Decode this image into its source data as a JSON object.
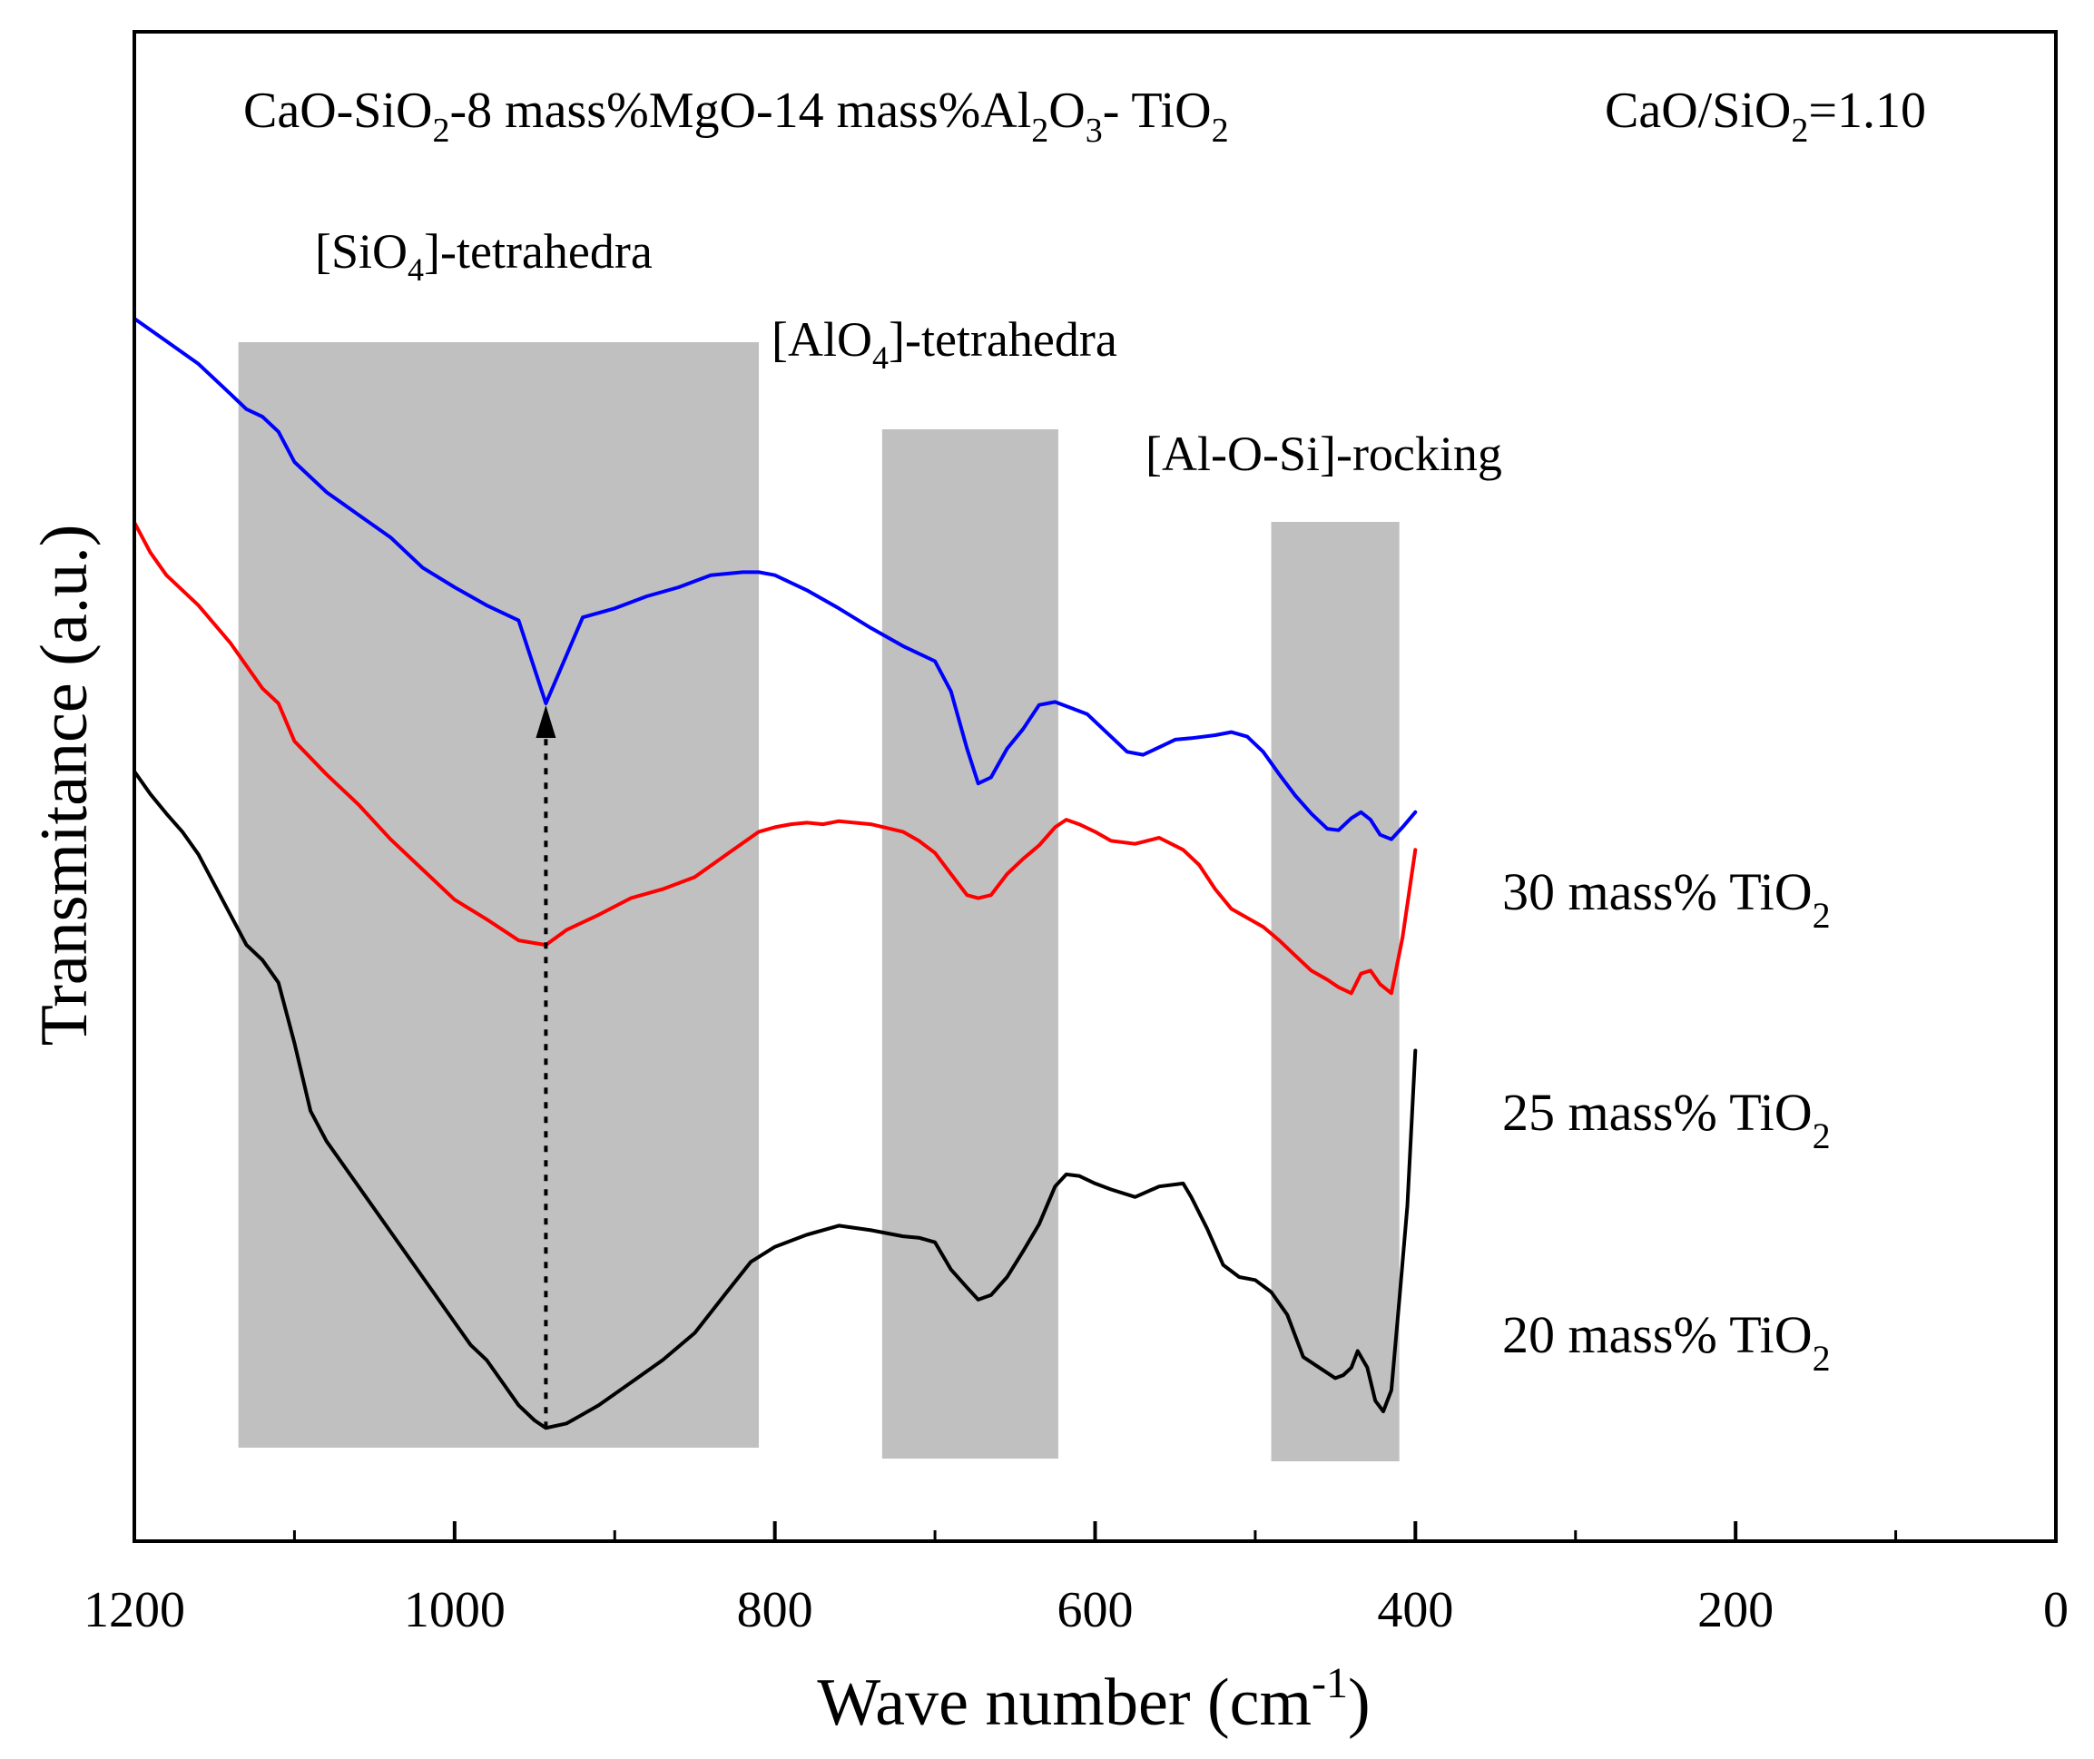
{
  "chart_data": {
    "type": "line",
    "title_parts": {
      "t1": "CaO-SiO",
      "s1": "2",
      "t2": "-8 mass%MgO-14 mass%Al",
      "s2": "2",
      "t3": "O",
      "s3": "3",
      "t4": "- TiO",
      "s4": "2"
    },
    "ratio_parts": {
      "t1": "CaO/SiO",
      "s1": "2",
      "t2": "=1.10"
    },
    "xlabel_main": "Wave number (cm",
    "xlabel_sup": "-1",
    "xlabel_close": ")",
    "ylabel": "Transmitance (a.u.)",
    "xlim": [
      1200,
      0
    ],
    "ylim": [
      0,
      100
    ],
    "x_ticks": [
      "1200",
      "1000",
      "800",
      "600",
      "400",
      "200",
      "0"
    ],
    "grid": false,
    "bands": [
      {
        "label": "[SiO4]-tetrahedra",
        "label_main": "[SiO",
        "label_sub": "4",
        "label_end": "]-tetrahedra",
        "x_from": 1135,
        "x_to": 810,
        "color": "#c0c0c0"
      },
      {
        "label": "[AlO4]-tetrahedra",
        "label_main": "[AlO",
        "label_sub": "4",
        "label_end": "]-tetrahedra",
        "x_from": 733,
        "x_to": 623,
        "color": "#c0c0c0"
      },
      {
        "label": "[Al-O-Si]-rocking",
        "label_main": "[Al-O-Si]-rocking",
        "label_sub": "",
        "label_end": "",
        "x_from": 490,
        "x_to": 410,
        "color": "#c0c0c0"
      }
    ],
    "arrow": {
      "x": 943,
      "y_from": 7.5,
      "y_to": 55.5,
      "style": "dotted"
    },
    "series": [
      {
        "name": "30 mass% TiO2",
        "label_main": "30 mass% TiO",
        "label_sub": "2",
        "color": "#0000ff",
        "x": [
          1200,
          1180,
          1160,
          1140,
          1130,
          1120,
          1110,
          1100,
          1080,
          1060,
          1040,
          1020,
          1000,
          980,
          960,
          943,
          920,
          900,
          880,
          860,
          840,
          820,
          810,
          800,
          780,
          760,
          740,
          720,
          700,
          690,
          680,
          673,
          665,
          655,
          645,
          635,
          625,
          615,
          605,
          595,
          580,
          570,
          560,
          550,
          540,
          525,
          515,
          505,
          495,
          485,
          475,
          465,
          455,
          448,
          440,
          434,
          428,
          422,
          415,
          408,
          400
        ],
        "y": [
          81,
          79.5,
          78,
          76,
          75,
          74.5,
          73.5,
          71.5,
          69.5,
          68,
          66.5,
          64.5,
          63.2,
          62,
          61,
          55.5,
          61.2,
          61.8,
          62.6,
          63.2,
          64,
          64.2,
          64.2,
          64,
          63,
          61.8,
          60.5,
          59.3,
          58.3,
          56.3,
          52.5,
          50.2,
          50.6,
          52.5,
          53.8,
          55.4,
          55.6,
          55.2,
          54.8,
          53.8,
          52.3,
          52.1,
          52.6,
          53.1,
          53.2,
          53.4,
          53.6,
          53.3,
          52.3,
          50.8,
          49.4,
          48.2,
          47.2,
          47.1,
          47.9,
          48.3,
          47.8,
          46.8,
          46.5,
          47.3,
          48.3
        ]
      },
      {
        "name": "25 mass% TiO2",
        "label_main": "25 mass% TiO",
        "label_sub": "2",
        "color": "#ff0000",
        "x": [
          1200,
          1190,
          1180,
          1160,
          1140,
          1120,
          1110,
          1100,
          1080,
          1060,
          1040,
          1020,
          1000,
          980,
          960,
          943,
          930,
          910,
          890,
          870,
          850,
          830,
          810,
          800,
          790,
          780,
          770,
          760,
          740,
          720,
          710,
          700,
          690,
          680,
          673,
          665,
          655,
          645,
          635,
          625,
          618,
          610,
          600,
          590,
          575,
          560,
          545,
          535,
          525,
          515,
          505,
          495,
          485,
          475,
          465,
          455,
          448,
          440,
          434,
          428,
          422,
          415,
          408,
          400
        ],
        "y": [
          67.5,
          65.5,
          64,
          62,
          59.5,
          56.5,
          55.5,
          53,
          50.8,
          48.8,
          46.5,
          44.5,
          42.5,
          41.2,
          39.8,
          39.5,
          40.5,
          41.5,
          42.6,
          43.2,
          44,
          45.5,
          47,
          47.3,
          47.5,
          47.6,
          47.5,
          47.7,
          47.5,
          47,
          46.4,
          45.6,
          44.2,
          42.8,
          42.6,
          42.8,
          44.2,
          45.2,
          46.1,
          47.3,
          47.8,
          47.5,
          47,
          46.4,
          46.2,
          46.6,
          45.8,
          44.8,
          43.2,
          41.9,
          41.3,
          40.7,
          39.8,
          38.8,
          37.8,
          37.2,
          36.7,
          36.3,
          37.6,
          37.8,
          36.9,
          36.3,
          40,
          45.8
        ]
      },
      {
        "name": "20 mass% TiO2",
        "label_main": "20 mass% TiO",
        "label_sub": "2",
        "color": "#000000",
        "x": [
          1200,
          1190,
          1180,
          1170,
          1160,
          1150,
          1140,
          1130,
          1120,
          1110,
          1100,
          1090,
          1080,
          1060,
          1040,
          1020,
          1000,
          990,
          980,
          970,
          960,
          950,
          943,
          930,
          910,
          890,
          870,
          850,
          830,
          815,
          800,
          780,
          760,
          740,
          720,
          710,
          700,
          690,
          680,
          673,
          665,
          655,
          645,
          635,
          625,
          618,
          610,
          600,
          590,
          575,
          560,
          545,
          540,
          530,
          520,
          510,
          500,
          490,
          480,
          470,
          460,
          450,
          445,
          440,
          436,
          430,
          425,
          420,
          415,
          410,
          405,
          400
        ],
        "y": [
          51,
          49.5,
          48.2,
          47,
          45.5,
          43.5,
          41.5,
          39.5,
          38.5,
          37,
          33,
          28.5,
          26.5,
          23.5,
          20.5,
          17.5,
          14.5,
          13,
          12,
          10.5,
          9,
          8,
          7.5,
          7.8,
          9,
          10.5,
          12,
          13.8,
          16.5,
          18.5,
          19.5,
          20.3,
          20.9,
          20.6,
          20.2,
          20.1,
          19.8,
          18,
          16.8,
          16,
          16.3,
          17.5,
          19.2,
          21,
          23.5,
          24.3,
          24.2,
          23.7,
          23.3,
          22.8,
          23.5,
          23.7,
          22.8,
          20.7,
          18.3,
          17.5,
          17.3,
          16.5,
          15,
          12.2,
          11.5,
          10.8,
          11,
          11.5,
          12.6,
          11.5,
          9.3,
          8.6,
          10,
          16,
          22.2,
          32.5
        ]
      }
    ]
  }
}
